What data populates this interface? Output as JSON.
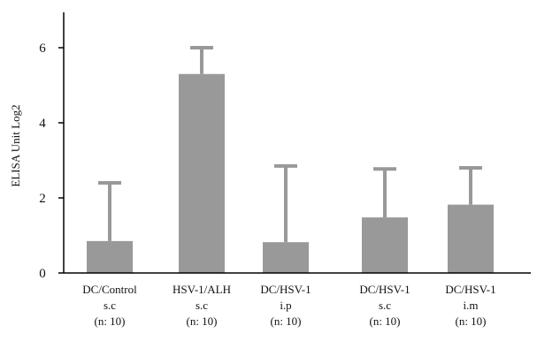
{
  "chart_data": {
    "type": "bar",
    "ylabel": "ELISA Unit Log2",
    "ylim": [
      0,
      7
    ],
    "yticks": [
      0,
      2,
      4,
      6
    ],
    "grid": false,
    "legend": "none",
    "bar_color": "#999999",
    "categories": [
      [
        "DC/Control",
        "s.c",
        "(n: 10)"
      ],
      [
        "HSV-1/ALH",
        "s.c",
        "(n: 10)"
      ],
      [
        "DC/HSV-1",
        "i.p",
        "(n: 10)"
      ],
      [
        "DC/HSV-1",
        "s.c",
        "(n: 10)"
      ],
      [
        "DC/HSV-1",
        "i.m",
        "(n: 10)"
      ]
    ],
    "values": [
      0.85,
      5.3,
      0.82,
      1.48,
      1.82
    ],
    "error_upper": [
      2.4,
      6.0,
      2.85,
      2.77,
      2.8
    ]
  }
}
